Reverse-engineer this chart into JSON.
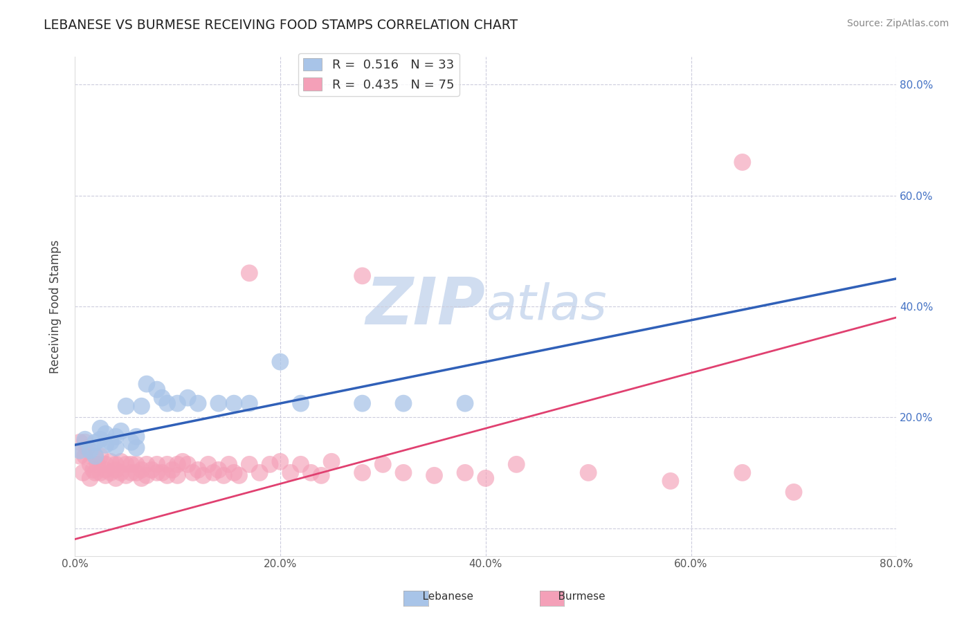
{
  "title": "LEBANESE VS BURMESE RECEIVING FOOD STAMPS CORRELATION CHART",
  "source_text": "Source: ZipAtlas.com",
  "ylabel": "Receiving Food Stamps",
  "xlim": [
    0.0,
    0.8
  ],
  "ylim": [
    -0.05,
    0.85
  ],
  "xticks": [
    0.0,
    0.2,
    0.4,
    0.6,
    0.8
  ],
  "yticks": [
    0.0,
    0.2,
    0.4,
    0.6,
    0.8
  ],
  "xtick_labels": [
    "0.0%",
    "20.0%",
    "40.0%",
    "60.0%",
    "80.0%"
  ],
  "ytick_labels_right": [
    "80.0%",
    "60.0%",
    "40.0%",
    "20.0%"
  ],
  "R_lebanese": 0.516,
  "N_lebanese": 33,
  "R_burmese": 0.435,
  "N_burmese": 75,
  "lebanese_color": "#a8c4e8",
  "burmese_color": "#f4a0b8",
  "lebanese_line_color": "#3060b8",
  "burmese_line_color": "#e04070",
  "trend_line_color": "#aaaaaa",
  "background_color": "#ffffff",
  "grid_color": "#ccccdd",
  "watermark_color": "#d0ddf0",
  "title_color": "#222222",
  "source_color": "#888888",
  "ylabel_color": "#444444",
  "tick_color": "#4472c4",
  "legend_label_color": "#333333",
  "legend_r_color": "#4472c4",
  "lebanese_points": [
    [
      0.005,
      0.14
    ],
    [
      0.01,
      0.16
    ],
    [
      0.015,
      0.14
    ],
    [
      0.02,
      0.13
    ],
    [
      0.02,
      0.155
    ],
    [
      0.025,
      0.16
    ],
    [
      0.025,
      0.18
    ],
    [
      0.03,
      0.15
    ],
    [
      0.03,
      0.17
    ],
    [
      0.035,
      0.155
    ],
    [
      0.04,
      0.145
    ],
    [
      0.04,
      0.165
    ],
    [
      0.045,
      0.175
    ],
    [
      0.05,
      0.22
    ],
    [
      0.055,
      0.155
    ],
    [
      0.06,
      0.145
    ],
    [
      0.06,
      0.165
    ],
    [
      0.065,
      0.22
    ],
    [
      0.07,
      0.26
    ],
    [
      0.08,
      0.25
    ],
    [
      0.085,
      0.235
    ],
    [
      0.09,
      0.225
    ],
    [
      0.1,
      0.225
    ],
    [
      0.11,
      0.235
    ],
    [
      0.12,
      0.225
    ],
    [
      0.14,
      0.225
    ],
    [
      0.155,
      0.225
    ],
    [
      0.17,
      0.225
    ],
    [
      0.2,
      0.3
    ],
    [
      0.22,
      0.225
    ],
    [
      0.28,
      0.225
    ],
    [
      0.32,
      0.225
    ],
    [
      0.38,
      0.225
    ]
  ],
  "burmese_points": [
    [
      0.005,
      0.155
    ],
    [
      0.005,
      0.13
    ],
    [
      0.008,
      0.1
    ],
    [
      0.01,
      0.155
    ],
    [
      0.01,
      0.13
    ],
    [
      0.012,
      0.145
    ],
    [
      0.015,
      0.09
    ],
    [
      0.015,
      0.115
    ],
    [
      0.018,
      0.105
    ],
    [
      0.02,
      0.13
    ],
    [
      0.02,
      0.1
    ],
    [
      0.022,
      0.115
    ],
    [
      0.025,
      0.1
    ],
    [
      0.025,
      0.13
    ],
    [
      0.03,
      0.115
    ],
    [
      0.03,
      0.095
    ],
    [
      0.03,
      0.105
    ],
    [
      0.035,
      0.12
    ],
    [
      0.035,
      0.1
    ],
    [
      0.04,
      0.105
    ],
    [
      0.04,
      0.09
    ],
    [
      0.04,
      0.115
    ],
    [
      0.045,
      0.1
    ],
    [
      0.045,
      0.12
    ],
    [
      0.05,
      0.095
    ],
    [
      0.05,
      0.115
    ],
    [
      0.055,
      0.1
    ],
    [
      0.055,
      0.115
    ],
    [
      0.06,
      0.1
    ],
    [
      0.06,
      0.115
    ],
    [
      0.065,
      0.105
    ],
    [
      0.065,
      0.09
    ],
    [
      0.07,
      0.115
    ],
    [
      0.07,
      0.095
    ],
    [
      0.075,
      0.105
    ],
    [
      0.08,
      0.1
    ],
    [
      0.08,
      0.115
    ],
    [
      0.085,
      0.1
    ],
    [
      0.09,
      0.095
    ],
    [
      0.09,
      0.115
    ],
    [
      0.095,
      0.105
    ],
    [
      0.1,
      0.095
    ],
    [
      0.1,
      0.115
    ],
    [
      0.105,
      0.12
    ],
    [
      0.11,
      0.115
    ],
    [
      0.115,
      0.1
    ],
    [
      0.12,
      0.105
    ],
    [
      0.125,
      0.095
    ],
    [
      0.13,
      0.115
    ],
    [
      0.135,
      0.1
    ],
    [
      0.14,
      0.105
    ],
    [
      0.145,
      0.095
    ],
    [
      0.15,
      0.115
    ],
    [
      0.155,
      0.1
    ],
    [
      0.16,
      0.095
    ],
    [
      0.17,
      0.115
    ],
    [
      0.18,
      0.1
    ],
    [
      0.19,
      0.115
    ],
    [
      0.2,
      0.12
    ],
    [
      0.21,
      0.1
    ],
    [
      0.22,
      0.115
    ],
    [
      0.23,
      0.1
    ],
    [
      0.24,
      0.095
    ],
    [
      0.25,
      0.12
    ],
    [
      0.28,
      0.1
    ],
    [
      0.3,
      0.115
    ],
    [
      0.32,
      0.1
    ],
    [
      0.35,
      0.095
    ],
    [
      0.38,
      0.1
    ],
    [
      0.4,
      0.09
    ],
    [
      0.43,
      0.115
    ],
    [
      0.5,
      0.1
    ],
    [
      0.58,
      0.085
    ],
    [
      0.65,
      0.1
    ],
    [
      0.7,
      0.065
    ]
  ],
  "burmese_outlier": [
    0.65,
    0.66
  ],
  "burmese_outlier2": [
    0.17,
    0.46
  ],
  "burmese_outlier3": [
    0.28,
    0.455
  ]
}
